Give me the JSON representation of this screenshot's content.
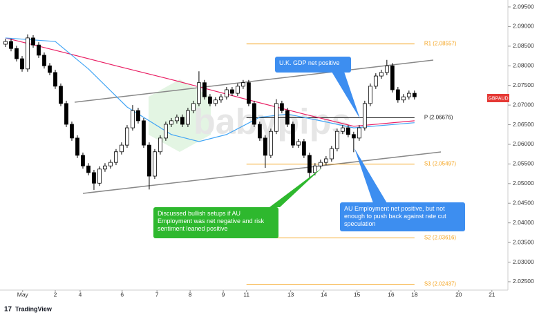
{
  "chart_data": {
    "type": "candlestick",
    "symbol": "GBPAUD",
    "watermark": "babypips",
    "brand": "TradingView",
    "x": [
      0,
      1,
      2,
      3,
      4,
      5,
      6,
      7,
      8,
      9,
      10,
      11,
      12,
      13,
      14,
      15,
      16,
      17,
      18,
      19,
      20,
      21,
      22,
      23,
      24,
      25,
      26,
      27,
      28,
      29,
      30,
      31,
      32,
      33,
      34,
      35,
      36,
      37,
      38,
      39,
      40,
      41,
      42,
      43,
      44,
      45,
      46,
      47,
      48,
      49,
      50,
      51,
      52,
      53,
      54,
      55,
      56,
      57,
      58,
      59,
      60,
      61,
      62,
      63,
      64,
      65,
      66,
      67,
      68,
      69,
      70,
      71,
      72,
      73,
      74
    ],
    "open": [
      2.0855,
      2.0862,
      2.0844,
      2.0818,
      2.0792,
      2.0871,
      2.0853,
      2.0827,
      2.08,
      2.0783,
      2.0748,
      2.0704,
      2.0651,
      2.0616,
      2.0572,
      2.0545,
      2.0528,
      2.0501,
      2.0537,
      2.0545,
      2.0554,
      2.0581,
      2.0598,
      2.0642,
      2.0686,
      2.066,
      2.0598,
      2.0519,
      2.0581,
      2.0616,
      2.0651,
      2.066,
      2.0669,
      2.0651,
      2.0686,
      2.0704,
      2.0757,
      2.0721,
      2.0704,
      2.0713,
      2.0721,
      2.0739,
      2.073,
      2.0748,
      2.0757,
      2.0704,
      2.0651,
      2.0616,
      2.0572,
      2.0633,
      2.0704,
      2.0686,
      2.0651,
      2.0598,
      2.0607,
      2.0572,
      2.0528,
      2.0545,
      2.0554,
      2.0563,
      2.0589,
      2.0633,
      2.0642,
      2.0625,
      2.0616,
      2.0642,
      2.0704,
      2.0748,
      2.0774,
      2.0783,
      2.08,
      2.0739,
      2.0713,
      2.0721,
      2.073
    ],
    "high": [
      2.0869,
      2.0869,
      2.0851,
      2.0825,
      2.088,
      2.0878,
      2.086,
      2.0834,
      2.0807,
      2.079,
      2.0755,
      2.0711,
      2.0658,
      2.0623,
      2.0579,
      2.0552,
      2.0535,
      2.0544,
      2.0552,
      2.0561,
      2.0588,
      2.0605,
      2.0649,
      2.07,
      2.0693,
      2.0667,
      2.0605,
      2.0588,
      2.0623,
      2.0658,
      2.0667,
      2.0676,
      2.0676,
      2.0693,
      2.0711,
      2.0786,
      2.0764,
      2.0728,
      2.072,
      2.0728,
      2.0746,
      2.0746,
      2.0755,
      2.0764,
      2.0764,
      2.0711,
      2.0658,
      2.0623,
      2.064,
      2.0715,
      2.0711,
      2.0693,
      2.0658,
      2.0614,
      2.0614,
      2.0579,
      2.0552,
      2.0561,
      2.057,
      2.0596,
      2.064,
      2.0649,
      2.0649,
      2.0632,
      2.0649,
      2.0711,
      2.0755,
      2.0781,
      2.079,
      2.0815,
      2.0807,
      2.0746,
      2.0728,
      2.0737,
      2.0737
    ],
    "low": [
      2.0848,
      2.0837,
      2.0811,
      2.0785,
      2.0785,
      2.0846,
      2.082,
      2.0793,
      2.0776,
      2.0741,
      2.0697,
      2.0644,
      2.0609,
      2.0565,
      2.0538,
      2.0521,
      2.0484,
      2.0494,
      2.053,
      2.0538,
      2.0547,
      2.0574,
      2.0591,
      2.0635,
      2.0653,
      2.0591,
      2.0485,
      2.0512,
      2.0574,
      2.0609,
      2.0644,
      2.0653,
      2.0644,
      2.0644,
      2.0679,
      2.0697,
      2.0714,
      2.0697,
      2.0697,
      2.0706,
      2.0714,
      2.0723,
      2.0723,
      2.0741,
      2.0697,
      2.0644,
      2.0609,
      2.054,
      2.0565,
      2.0626,
      2.0679,
      2.0644,
      2.0591,
      2.0591,
      2.0565,
      2.0514,
      2.0521,
      2.0538,
      2.0547,
      2.0556,
      2.0582,
      2.0626,
      2.0618,
      2.058,
      2.0609,
      2.0635,
      2.0697,
      2.0741,
      2.0767,
      2.0776,
      2.0732,
      2.0706,
      2.0706,
      2.0714,
      2.0714
    ],
    "close": [
      2.0862,
      2.0844,
      2.0818,
      2.0792,
      2.0871,
      2.0853,
      2.0827,
      2.08,
      2.0783,
      2.0748,
      2.0704,
      2.0651,
      2.0616,
      2.0572,
      2.0545,
      2.0528,
      2.0501,
      2.0537,
      2.0545,
      2.0554,
      2.0581,
      2.0598,
      2.0642,
      2.0686,
      2.066,
      2.0598,
      2.0519,
      2.0581,
      2.0616,
      2.0651,
      2.066,
      2.0669,
      2.0651,
      2.0686,
      2.0704,
      2.0757,
      2.0721,
      2.0704,
      2.0713,
      2.0721,
      2.0739,
      2.073,
      2.0748,
      2.0757,
      2.0704,
      2.0651,
      2.0616,
      2.0572,
      2.0633,
      2.0704,
      2.0686,
      2.0651,
      2.0598,
      2.0607,
      2.0572,
      2.0528,
      2.0545,
      2.0554,
      2.0563,
      2.0589,
      2.0633,
      2.0642,
      2.0625,
      2.0616,
      2.0642,
      2.0704,
      2.0748,
      2.0774,
      2.0783,
      2.08,
      2.0739,
      2.0713,
      2.0721,
      2.073,
      2.0721
    ],
    "moving_averages": [
      {
        "color": "#e91e63",
        "x": [
          0,
          10,
          20,
          30,
          37,
          44,
          54,
          63,
          74
        ],
        "values": [
          2.0871,
          2.0836,
          2.08,
          2.0765,
          2.0739,
          2.0713,
          2.0677,
          2.0646,
          2.066
        ]
      },
      {
        "color": "#42a5f5",
        "x": [
          0,
          9,
          15,
          22,
          30,
          35,
          40,
          46,
          51,
          57,
          63,
          74
        ],
        "values": [
          2.0871,
          2.0862,
          2.0792,
          2.0695,
          2.0625,
          2.0607,
          2.0625,
          2.0669,
          2.0677,
          2.066,
          2.0642,
          2.0655
        ]
      }
    ],
    "levels": [
      {
        "label": "R1 (2.08557)",
        "value": 2.08557,
        "color": "#f5a623"
      },
      {
        "label": "P (2.06676)",
        "value": 2.06676,
        "color": "#222222"
      },
      {
        "label": "S1 (2.05497)",
        "value": 2.05497,
        "color": "#f5a623"
      },
      {
        "label": "S2 (2.03616)",
        "value": 2.03616,
        "color": "#f5a623"
      },
      {
        "label": "S3 (2.02437)",
        "value": 2.02437,
        "color": "#f5a623"
      }
    ],
    "callouts": [
      {
        "text": "U.K. GDP net positive",
        "color": "#3d8ef0"
      },
      {
        "text": "Discussed bullish setups if AU Employment was net negative and risk sentiment leaned positive",
        "color": "#2eb82e"
      },
      {
        "text": "AU Employment net positive, but not enough to push back against rate cut speculation",
        "color": "#3d8ef0"
      }
    ],
    "xlim": [
      -1,
      90.9
    ],
    "xticks": [
      {
        "value": 3.1,
        "label": "May"
      },
      {
        "value": 9,
        "label": "2"
      },
      {
        "value": 13.5,
        "label": "4"
      },
      {
        "value": 21.1,
        "label": "6"
      },
      {
        "value": 27.4,
        "label": "7"
      },
      {
        "value": 33.4,
        "label": "8"
      },
      {
        "value": 39.4,
        "label": "9"
      },
      {
        "value": 43.6,
        "label": "11"
      },
      {
        "value": 51.6,
        "label": "13"
      },
      {
        "value": 57.6,
        "label": "14"
      },
      {
        "value": 63.6,
        "label": "15"
      },
      {
        "value": 69.75,
        "label": "16"
      },
      {
        "value": 74,
        "label": "18"
      },
      {
        "value": 82,
        "label": "20"
      },
      {
        "value": 88,
        "label": "21"
      }
    ],
    "ylim": [
      2.02288,
      2.09676
    ],
    "yticks": [
      {
        "value": 2.025,
        "label": "2.02500"
      },
      {
        "value": 2.03,
        "label": "2.03000"
      },
      {
        "value": 2.035,
        "label": "2.03500"
      },
      {
        "value": 2.04,
        "label": "2.04000"
      },
      {
        "value": 2.045,
        "label": "2.04500"
      },
      {
        "value": 2.05,
        "label": "2.05000"
      },
      {
        "value": 2.055,
        "label": "2.05500"
      },
      {
        "value": 2.06,
        "label": "2.06000"
      },
      {
        "value": 2.065,
        "label": "2.06500"
      },
      {
        "value": 2.07,
        "label": "2.07000"
      },
      {
        "value": 2.075,
        "label": "2.07500"
      },
      {
        "value": 2.08,
        "label": "2.08000"
      },
      {
        "value": 2.085,
        "label": "2.08500"
      },
      {
        "value": 2.09,
        "label": "2.09000"
      },
      {
        "value": 2.095,
        "label": "2.09500"
      }
    ]
  }
}
